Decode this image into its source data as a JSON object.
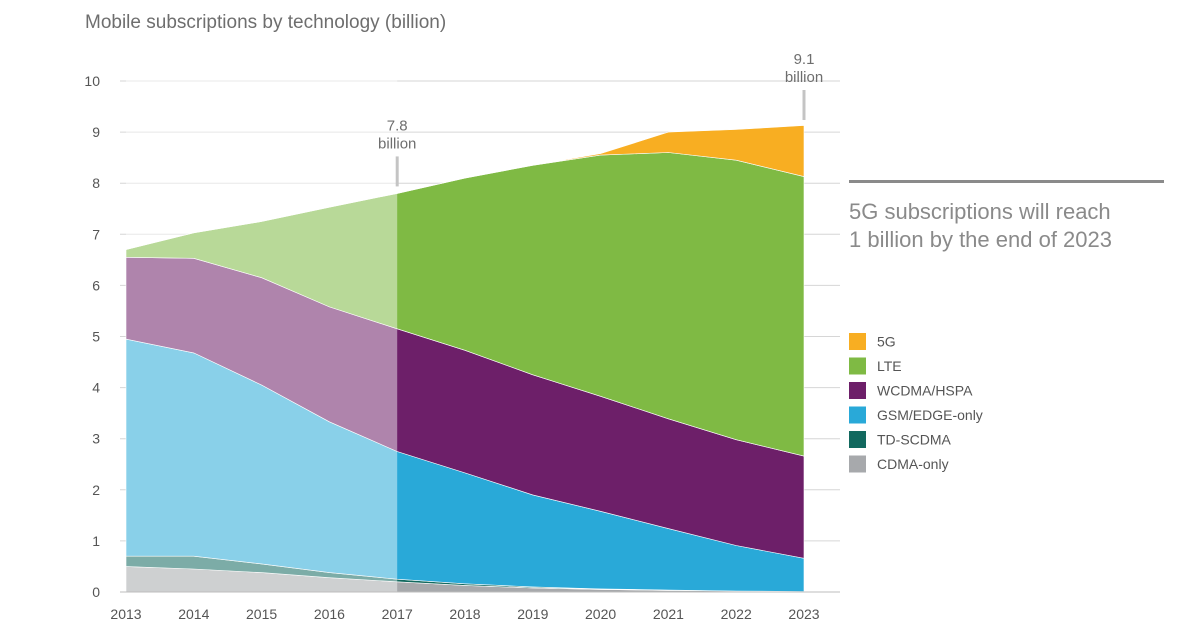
{
  "headline": {
    "line1": "5G subscriptions will reach",
    "line2": "1 billion by the end of 2023"
  },
  "chart_data": {
    "type": "area",
    "title": "Mobile subscriptions by technology (billion)",
    "xlabel": "",
    "ylabel": "",
    "x": [
      "2013",
      "2014",
      "2015",
      "2016",
      "2017",
      "2018",
      "2019",
      "2020",
      "2021",
      "2022",
      "2023"
    ],
    "ylim": [
      0,
      10
    ],
    "yticks": [
      0,
      1,
      2,
      3,
      4,
      5,
      6,
      7,
      8,
      9,
      10
    ],
    "grid": true,
    "stacked": true,
    "forecast_from": "2017",
    "series": [
      {
        "name": "CDMA-only",
        "color": "#a7a9ac",
        "values": [
          0.5,
          0.45,
          0.38,
          0.28,
          0.2,
          0.13,
          0.08,
          0.05,
          0.03,
          0.02,
          0.01
        ]
      },
      {
        "name": "TD-SCDMA",
        "color": "#12695f",
        "values": [
          0.2,
          0.25,
          0.17,
          0.1,
          0.05,
          0.03,
          0.02,
          0.01,
          0.01,
          0.0,
          0.0
        ]
      },
      {
        "name": "GSM/EDGE-only",
        "color": "#29a9d8",
        "values": [
          4.25,
          3.98,
          3.5,
          2.95,
          2.5,
          2.17,
          1.8,
          1.52,
          1.2,
          0.89,
          0.65
        ]
      },
      {
        "name": "WCDMA/HSPA",
        "color": "#6d1f69",
        "values": [
          1.6,
          1.85,
          2.1,
          2.25,
          2.4,
          2.4,
          2.35,
          2.25,
          2.15,
          2.07,
          2.0
        ]
      },
      {
        "name": "LTE",
        "color": "#7fba44",
        "values": [
          0.15,
          0.5,
          1.1,
          1.95,
          2.65,
          3.37,
          4.1,
          4.72,
          5.21,
          5.47,
          5.47
        ]
      },
      {
        "name": "5G",
        "color": "#f8ae22",
        "values": [
          0,
          0,
          0,
          0,
          0,
          0,
          0,
          0.03,
          0.4,
          0.6,
          1.0
        ]
      }
    ],
    "legend": {
      "position": "right",
      "entries": [
        "5G",
        "LTE",
        "WCDMA/HSPA",
        "GSM/EDGE-only",
        "TD-SCDMA",
        "CDMA-only"
      ]
    },
    "annotations": [
      {
        "x": "2017",
        "line1": "7.8",
        "line2": "billion",
        "value": 7.8
      },
      {
        "x": "2023",
        "line1": "9.1",
        "line2": "billion",
        "value": 9.1
      }
    ]
  }
}
